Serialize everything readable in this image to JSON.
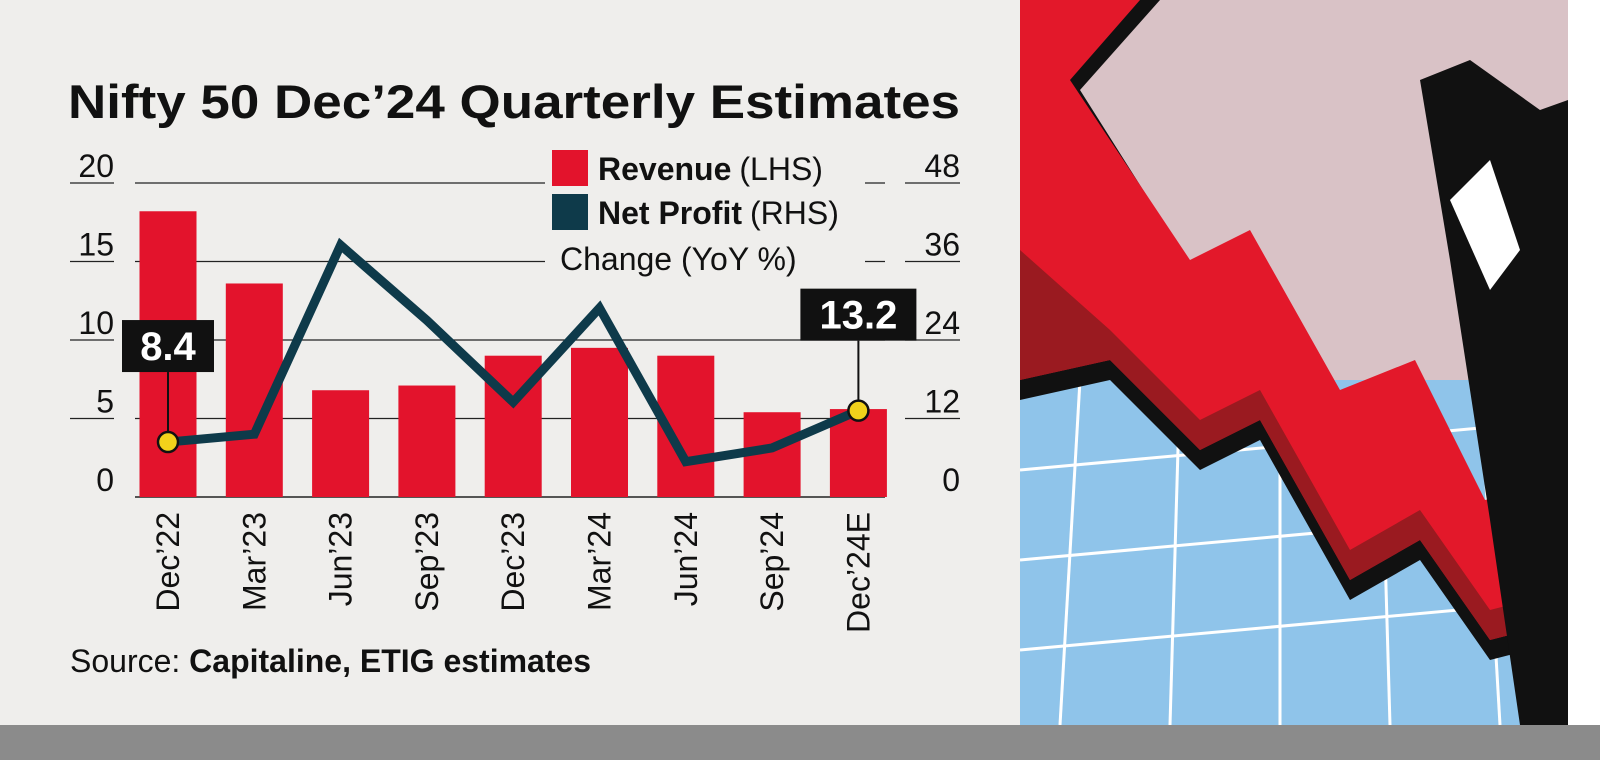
{
  "chart_data": {
    "type": "bar+line",
    "title": "Nifty 50 Dec’24 Quarterly Estimates",
    "subtitle": "Change (YoY %)",
    "categories": [
      "Dec’22",
      "Mar’23",
      "Jun’23",
      "Sep’23",
      "Dec’23",
      "Mar’24",
      "Jun’24",
      "Sep’24",
      "Dec’24E"
    ],
    "series": [
      {
        "name": "Revenue",
        "axis_note": "(LHS)",
        "type": "bar",
        "color": "#e3132c",
        "values": [
          18.2,
          13.6,
          6.8,
          7.1,
          9.0,
          9.5,
          9.0,
          5.4,
          5.6
        ]
      },
      {
        "name": "Net Profit",
        "axis_note": "(RHS)",
        "type": "line",
        "color": "#0e3a4a",
        "values": [
          8.4,
          9.6,
          38.5,
          27.0,
          14.5,
          28.9,
          5.4,
          7.5,
          13.2
        ]
      }
    ],
    "annotations": [
      {
        "category": "Dec’22",
        "series": "Net Profit",
        "label": "8.4"
      },
      {
        "category": "Dec’24E",
        "series": "Net Profit",
        "label": "13.2"
      }
    ],
    "y_left": {
      "ticks": [
        0,
        5,
        10,
        15,
        20
      ],
      "ylim": [
        0,
        20
      ]
    },
    "y_right": {
      "ticks": [
        0,
        12,
        24,
        36,
        48
      ],
      "ylim": [
        0,
        48
      ]
    },
    "grid": true,
    "legend_placement": "top-right",
    "source_label": "Source: ",
    "source_text": "Capitaline, ETIG estimates",
    "marker_color": "#f2d21b"
  }
}
